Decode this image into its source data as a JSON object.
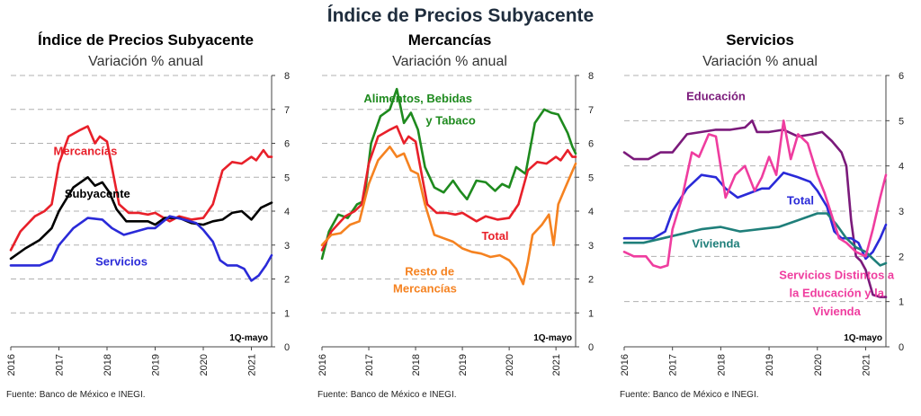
{
  "main_title": "Índice de Precios Subyacente",
  "chart_data": [
    {
      "type": "line",
      "title": "Índice de Precios Subyacente",
      "subtitle": "Variación % anual",
      "note": "1Q-mayo",
      "source": "Fuente: Banco de México e INEGI.",
      "x_tick_labels": [
        "2016",
        "2017",
        "2018",
        "2019",
        "2020",
        "2021"
      ],
      "xlim": [
        2016,
        2021.42
      ],
      "ylim": [
        0,
        8
      ],
      "y_ticks": [
        0,
        1,
        2,
        3,
        4,
        5,
        6,
        7,
        8
      ],
      "grid": true,
      "series": [
        {
          "name": "Mercancías",
          "color": "#e8202a",
          "x": [
            2016,
            2016.2,
            2016.5,
            2016.7,
            2016.85,
            2017,
            2017.2,
            2017.45,
            2017.6,
            2017.75,
            2017.85,
            2018,
            2018.1,
            2018.25,
            2018.45,
            2018.65,
            2018.85,
            2019,
            2019.3,
            2019.5,
            2019.75,
            2020,
            2020.2,
            2020.4,
            2020.6,
            2020.8,
            2021,
            2021.1,
            2021.25,
            2021.35,
            2021.42
          ],
          "y": [
            2.85,
            3.4,
            3.85,
            4.0,
            4.2,
            5.4,
            6.2,
            6.4,
            6.5,
            6.0,
            6.2,
            6.05,
            5.3,
            4.2,
            3.95,
            3.95,
            3.9,
            3.95,
            3.7,
            3.85,
            3.75,
            3.8,
            4.2,
            5.2,
            5.45,
            5.4,
            5.6,
            5.5,
            5.8,
            5.6,
            5.6
          ]
        },
        {
          "name": "Subyacente",
          "color": "#000000",
          "x": [
            2016,
            2016.3,
            2016.6,
            2016.85,
            2017,
            2017.3,
            2017.6,
            2017.75,
            2017.9,
            2018.05,
            2018.2,
            2018.4,
            2018.6,
            2018.85,
            2019,
            2019.2,
            2019.5,
            2019.75,
            2020,
            2020.2,
            2020.4,
            2020.6,
            2020.8,
            2021,
            2021.2,
            2021.42
          ],
          "y": [
            2.6,
            2.9,
            3.15,
            3.5,
            4.0,
            4.7,
            5.0,
            4.75,
            4.85,
            4.55,
            4.05,
            3.7,
            3.7,
            3.7,
            3.6,
            3.8,
            3.8,
            3.65,
            3.6,
            3.7,
            3.75,
            3.95,
            4.0,
            3.75,
            4.1,
            4.25
          ]
        },
        {
          "name": "Servicios",
          "color": "#2a2ad8",
          "x": [
            2016,
            2016.3,
            2016.6,
            2016.85,
            2017,
            2017.3,
            2017.6,
            2017.9,
            2018.1,
            2018.35,
            2018.6,
            2018.85,
            2019,
            2019.3,
            2019.6,
            2019.85,
            2020,
            2020.2,
            2020.35,
            2020.5,
            2020.7,
            2020.85,
            2021,
            2021.15,
            2021.3,
            2021.42
          ],
          "y": [
            2.4,
            2.4,
            2.4,
            2.55,
            3.0,
            3.5,
            3.8,
            3.75,
            3.5,
            3.3,
            3.4,
            3.5,
            3.5,
            3.85,
            3.75,
            3.65,
            3.45,
            3.1,
            2.55,
            2.4,
            2.4,
            2.3,
            1.95,
            2.1,
            2.4,
            2.7
          ]
        }
      ],
      "labels": [
        {
          "text": "Mercancías",
          "color": "#e8202a",
          "x": 2017.55,
          "y": 5.65
        },
        {
          "text": "Subyacente",
          "color": "#000000",
          "x": 2017.8,
          "y": 4.4
        },
        {
          "text": "Servicios",
          "color": "#2a2ad8",
          "x": 2018.3,
          "y": 2.4
        }
      ]
    },
    {
      "type": "line",
      "title": "Mercancías",
      "subtitle": "Variación % anual",
      "note": "1Q-mayo",
      "source": "Fuente: Banco de México e INEGI.",
      "x_tick_labels": [
        "2016",
        "2017",
        "2018",
        "2019",
        "2020",
        "2021"
      ],
      "xlim": [
        2016,
        2021.42
      ],
      "ylim": [
        0,
        8
      ],
      "y_ticks": [
        0,
        1,
        2,
        3,
        4,
        5,
        6,
        7,
        8
      ],
      "grid": true,
      "series": [
        {
          "name": "Alimentos, Bebidas y Tabaco",
          "color": "#1e8a1e",
          "x": [
            2016,
            2016.15,
            2016.35,
            2016.55,
            2016.75,
            2016.9,
            2017.05,
            2017.25,
            2017.45,
            2017.6,
            2017.75,
            2017.9,
            2018.05,
            2018.2,
            2018.4,
            2018.6,
            2018.8,
            2018.95,
            2019.1,
            2019.3,
            2019.5,
            2019.7,
            2019.85,
            2020,
            2020.15,
            2020.35,
            2020.55,
            2020.75,
            2020.9,
            2021.05,
            2021.25,
            2021.35,
            2021.42
          ],
          "y": [
            2.6,
            3.4,
            3.9,
            3.8,
            4.2,
            4.3,
            6.0,
            6.8,
            7.0,
            7.6,
            6.6,
            6.9,
            6.4,
            5.3,
            4.7,
            4.55,
            4.9,
            4.6,
            4.35,
            4.9,
            4.85,
            4.6,
            4.8,
            4.7,
            5.3,
            5.1,
            6.6,
            7.0,
            6.9,
            6.85,
            6.3,
            5.9,
            5.7
          ]
        },
        {
          "name": "Total",
          "color": "#e8202a",
          "x": [
            2016,
            2016.2,
            2016.5,
            2016.7,
            2016.85,
            2017,
            2017.2,
            2017.45,
            2017.6,
            2017.75,
            2017.85,
            2018,
            2018.1,
            2018.25,
            2018.45,
            2018.65,
            2018.85,
            2019,
            2019.3,
            2019.5,
            2019.75,
            2020,
            2020.2,
            2020.4,
            2020.6,
            2020.8,
            2021,
            2021.1,
            2021.25,
            2021.35,
            2021.42
          ],
          "y": [
            2.85,
            3.4,
            3.85,
            4.0,
            4.2,
            5.4,
            6.2,
            6.4,
            6.5,
            6.0,
            6.2,
            6.05,
            5.3,
            4.2,
            3.95,
            3.95,
            3.9,
            3.95,
            3.7,
            3.85,
            3.75,
            3.8,
            4.2,
            5.2,
            5.45,
            5.4,
            5.6,
            5.5,
            5.8,
            5.6,
            5.6
          ]
        },
        {
          "name": "Resto de Mercancías",
          "color": "#f58220",
          "x": [
            2016,
            2016.2,
            2016.4,
            2016.6,
            2016.8,
            2017,
            2017.2,
            2017.45,
            2017.6,
            2017.75,
            2017.9,
            2018.05,
            2018.2,
            2018.4,
            2018.6,
            2018.8,
            2019,
            2019.2,
            2019.4,
            2019.6,
            2019.8,
            2020,
            2020.15,
            2020.3,
            2020.4,
            2020.5,
            2020.7,
            2020.85,
            2020.95,
            2021.05,
            2021.2,
            2021.42
          ],
          "y": [
            3.0,
            3.3,
            3.35,
            3.6,
            3.7,
            4.8,
            5.5,
            5.9,
            5.6,
            5.7,
            5.2,
            5.1,
            4.2,
            3.3,
            3.2,
            3.1,
            2.9,
            2.8,
            2.75,
            2.65,
            2.7,
            2.55,
            2.3,
            1.85,
            2.5,
            3.3,
            3.6,
            3.9,
            3.0,
            4.2,
            4.7,
            5.4
          ]
        }
      ],
      "labels": [
        {
          "text": "Alimentos, Bebidas",
          "color": "#1e8a1e",
          "x": 2018.05,
          "y": 7.2
        },
        {
          "text": "y Tabaco",
          "color": "#1e8a1e",
          "x": 2018.75,
          "y": 6.55
        },
        {
          "text": "Total",
          "color": "#e8202a",
          "x": 2019.7,
          "y": 3.15
        },
        {
          "text": "Resto de",
          "color": "#f58220",
          "x": 2018.3,
          "y": 2.1
        },
        {
          "text": "Mercancías",
          "color": "#f58220",
          "x": 2018.2,
          "y": 1.6
        }
      ]
    },
    {
      "type": "line",
      "title": "Servicios",
      "subtitle": "Variación % anual",
      "note": "1Q-mayo",
      "source": "Fuente: Banco de México e INEGI.",
      "x_tick_labels": [
        "2016",
        "2017",
        "2018",
        "2019",
        "2020",
        "2021"
      ],
      "xlim": [
        2016,
        2021.42
      ],
      "ylim": [
        0,
        6
      ],
      "y_ticks": [
        0,
        1,
        2,
        3,
        4,
        5,
        6
      ],
      "grid": true,
      "series": [
        {
          "name": "Educación",
          "color": "#7b1a7b",
          "x": [
            2016,
            2016.2,
            2016.5,
            2016.75,
            2017,
            2017.3,
            2017.6,
            2017.9,
            2018.2,
            2018.5,
            2018.65,
            2018.75,
            2019,
            2019.3,
            2019.6,
            2019.9,
            2020.1,
            2020.3,
            2020.5,
            2020.6,
            2020.7,
            2020.8,
            2020.9,
            2021,
            2021.15,
            2021.3,
            2021.42
          ],
          "y": [
            4.3,
            4.15,
            4.15,
            4.3,
            4.3,
            4.7,
            4.75,
            4.8,
            4.8,
            4.85,
            5.0,
            4.75,
            4.75,
            4.8,
            4.65,
            4.7,
            4.75,
            4.55,
            4.3,
            4.0,
            2.8,
            2.0,
            1.9,
            1.7,
            1.15,
            1.1,
            1.1
          ]
        },
        {
          "name": "Total",
          "color": "#2a2ad8",
          "x": [
            2016,
            2016.3,
            2016.6,
            2016.85,
            2017,
            2017.3,
            2017.6,
            2017.9,
            2018.1,
            2018.35,
            2018.6,
            2018.85,
            2019,
            2019.3,
            2019.6,
            2019.85,
            2020,
            2020.2,
            2020.35,
            2020.5,
            2020.7,
            2020.85,
            2021,
            2021.15,
            2021.3,
            2021.42
          ],
          "y": [
            2.4,
            2.4,
            2.4,
            2.55,
            3.0,
            3.5,
            3.8,
            3.75,
            3.5,
            3.3,
            3.4,
            3.5,
            3.5,
            3.85,
            3.75,
            3.65,
            3.45,
            3.1,
            2.55,
            2.4,
            2.4,
            2.3,
            1.95,
            2.1,
            2.4,
            2.7
          ]
        },
        {
          "name": "Vivienda",
          "color": "#1f7f7a",
          "x": [
            2016,
            2016.4,
            2016.8,
            2017.2,
            2017.6,
            2018,
            2018.4,
            2018.8,
            2019.2,
            2019.6,
            2020,
            2020.2,
            2020.4,
            2020.6,
            2020.8,
            2021,
            2021.2,
            2021.3,
            2021.42
          ],
          "y": [
            2.3,
            2.3,
            2.4,
            2.5,
            2.6,
            2.65,
            2.55,
            2.6,
            2.65,
            2.8,
            2.95,
            2.95,
            2.7,
            2.4,
            2.2,
            2.1,
            1.9,
            1.8,
            1.85
          ]
        },
        {
          "name": "Servicios Distintos a la Educación y la Vivienda",
          "color": "#ef3d9f",
          "x": [
            2016,
            2016.2,
            2016.45,
            2016.6,
            2016.75,
            2016.9,
            2017,
            2017.2,
            2017.4,
            2017.55,
            2017.75,
            2017.9,
            2018.1,
            2018.3,
            2018.5,
            2018.7,
            2018.85,
            2019,
            2019.15,
            2019.3,
            2019.45,
            2019.6,
            2019.8,
            2020,
            2020.15,
            2020.3,
            2020.45,
            2020.6,
            2020.8,
            2021,
            2021.15,
            2021.3,
            2021.42
          ],
          "y": [
            2.1,
            2.0,
            2.0,
            1.8,
            1.75,
            1.8,
            2.6,
            3.3,
            4.3,
            4.2,
            4.7,
            4.65,
            3.3,
            3.8,
            4.0,
            3.45,
            3.75,
            4.2,
            3.8,
            5.0,
            4.15,
            4.7,
            4.5,
            3.8,
            3.4,
            2.9,
            2.4,
            2.3,
            2.1,
            2.0,
            2.6,
            3.3,
            3.8
          ]
        }
      ],
      "labels": [
        {
          "text": "Educación",
          "color": "#7b1a7b",
          "x": 2017.9,
          "y": 5.45
        },
        {
          "text": "Total",
          "color": "#2a2ad8",
          "x": 2019.65,
          "y": 3.15
        },
        {
          "text": "Vivienda",
          "color": "#1f7f7a",
          "x": 2017.9,
          "y": 2.2
        },
        {
          "text": "Servicios Distintos a",
          "color": "#ef3d9f",
          "x": 2020.4,
          "y": 1.5
        },
        {
          "text": "la Educación y la",
          "color": "#ef3d9f",
          "x": 2020.4,
          "y": 1.1
        },
        {
          "text": "Vivienda",
          "color": "#ef3d9f",
          "x": 2020.4,
          "y": 0.7
        }
      ]
    }
  ]
}
